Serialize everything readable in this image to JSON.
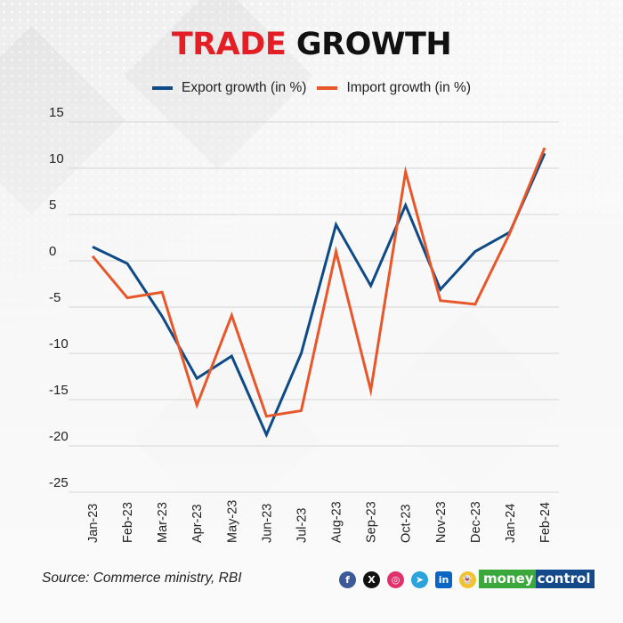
{
  "title": {
    "part1": "TRADE",
    "part2": "GROWTH"
  },
  "colors": {
    "title_red": "#e31e24",
    "export": "#0d4a86",
    "import": "#e8572a",
    "grid": "#d6d6d6"
  },
  "chart_data": {
    "type": "line",
    "title": "TRADE GROWTH",
    "xlabel": "",
    "ylabel": "",
    "ylim": [
      -25,
      15
    ],
    "yticks": [
      15,
      10,
      5,
      0,
      -5,
      -10,
      -15,
      -20,
      -25
    ],
    "grid": true,
    "legend_position": "top-center",
    "categories": [
      "Jan-23",
      "Feb-23",
      "Mar-23",
      "Apr-23",
      "May-23",
      "Jun-23",
      "Jul-23",
      "Aug-23",
      "Sep-23",
      "Oct-23",
      "Nov-23",
      "Dec-23",
      "Jan-24",
      "Feb-24"
    ],
    "series": [
      {
        "name": "Export growth (in %)",
        "color": "#0d4a86",
        "values": [
          1.5,
          -0.3,
          -6.0,
          -12.7,
          -10.3,
          -18.8,
          -10.0,
          3.9,
          -2.7,
          6.0,
          -3.1,
          1.0,
          3.1,
          11.6
        ]
      },
      {
        "name": "Import growth (in %)",
        "color": "#e8572a",
        "values": [
          0.5,
          -4.0,
          -3.4,
          -15.6,
          -5.9,
          -16.8,
          -16.2,
          1.0,
          -14.0,
          9.6,
          -4.3,
          -4.7,
          3.0,
          12.2
        ]
      }
    ]
  },
  "footer": {
    "source": "Source: Commerce ministry, RBI",
    "social_icons": [
      {
        "name": "facebook-icon",
        "glyph": "f",
        "color": "#3b5998"
      },
      {
        "name": "x-icon",
        "glyph": "X",
        "color": "#111111"
      },
      {
        "name": "instagram-icon",
        "glyph": "◎",
        "color": "#e1306c"
      },
      {
        "name": "telegram-icon",
        "glyph": "➤",
        "color": "#2aa3dc"
      },
      {
        "name": "linkedin-icon",
        "glyph": "in",
        "color": "#0a66c2"
      },
      {
        "name": "snapchat-icon",
        "glyph": "👻",
        "color": "#f2c230"
      }
    ],
    "brand": {
      "part1": "money",
      "part2": "control"
    }
  }
}
